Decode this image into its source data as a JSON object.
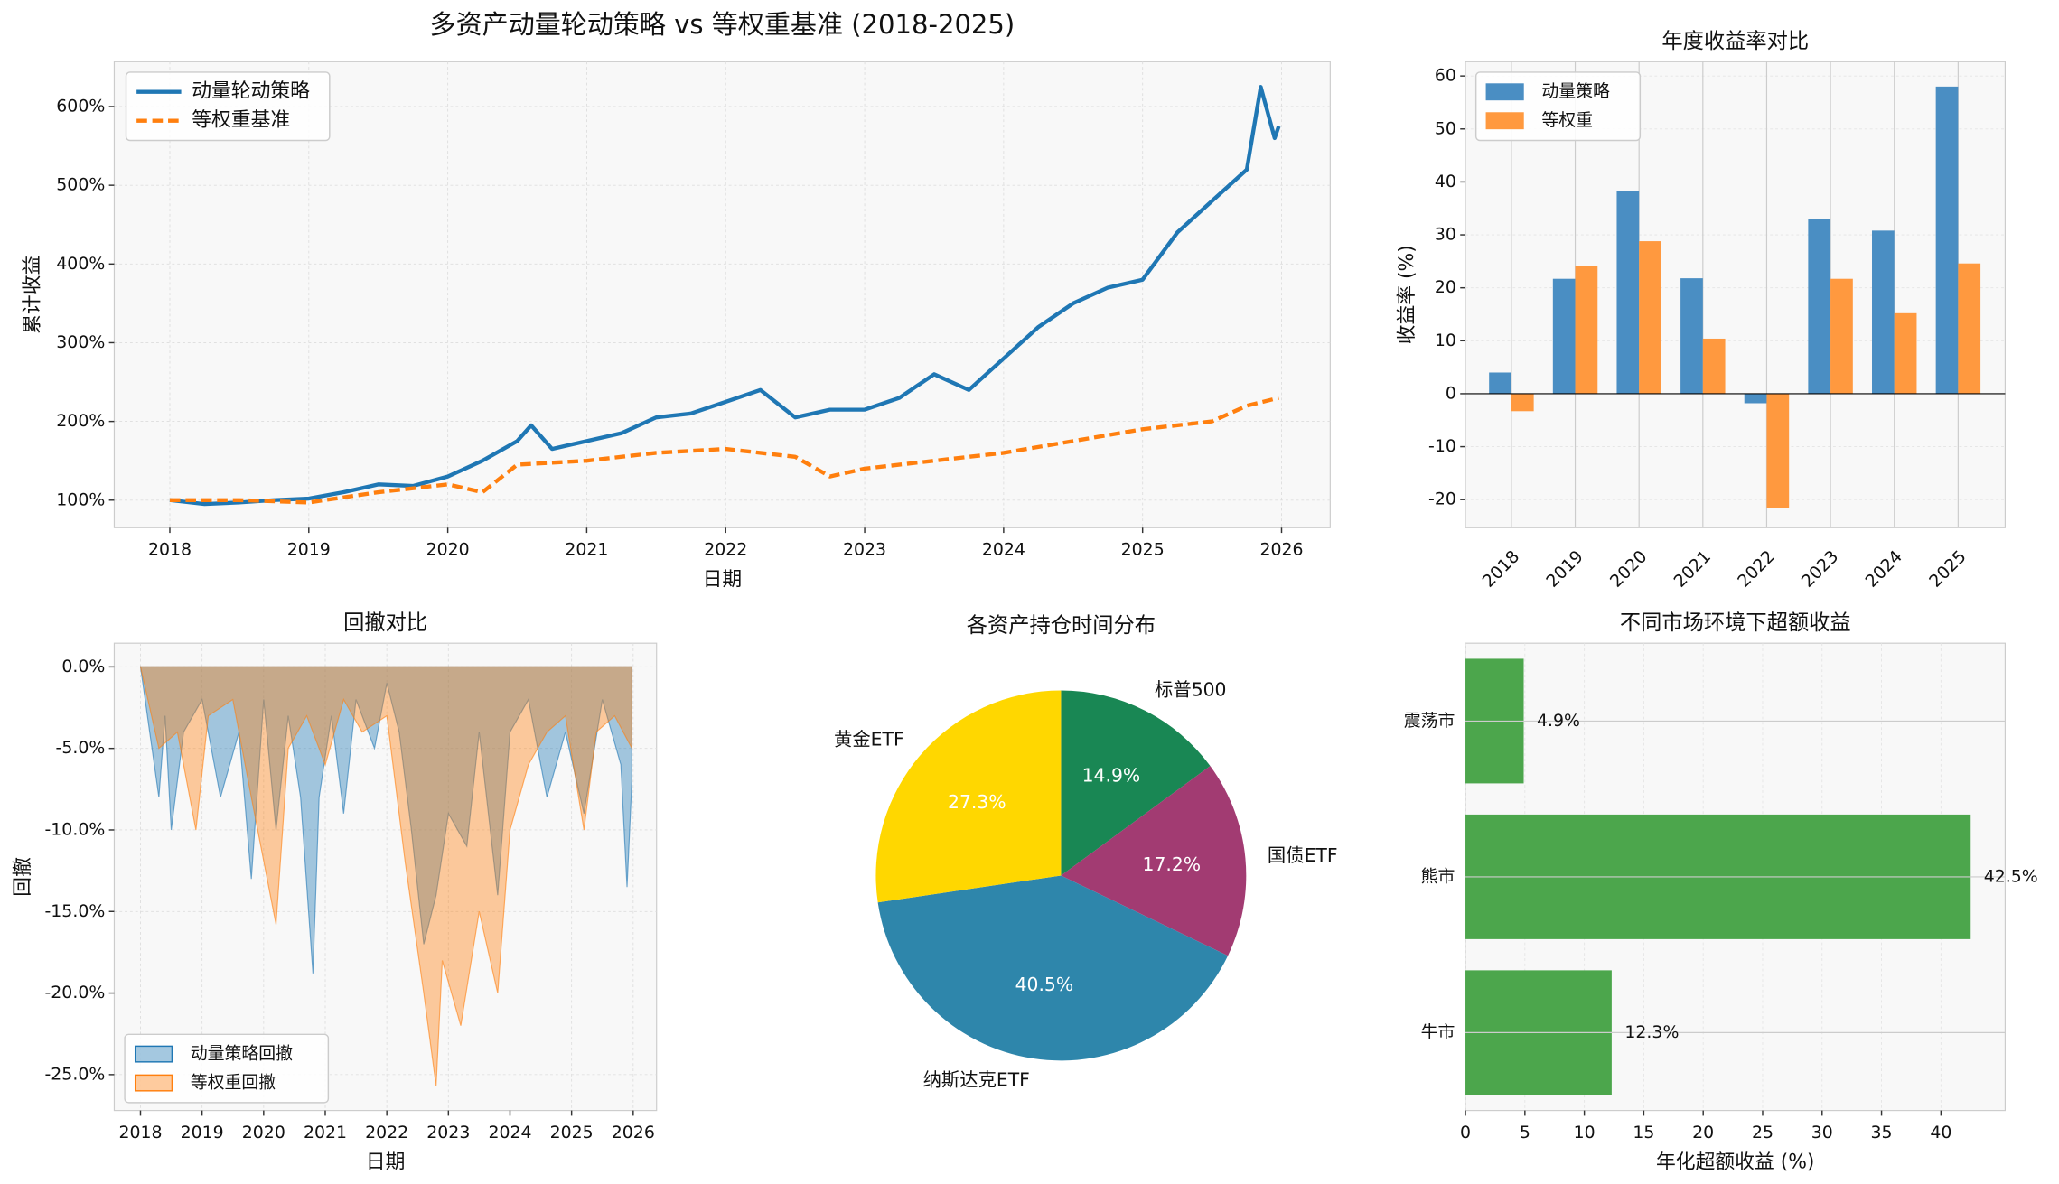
{
  "chart_data": [
    {
      "type": "line",
      "title": "多资产动量轮动策略 vs 等权重基准 (2018-2025)",
      "x_label": "日期",
      "y_label": "累计收益",
      "xlim": [
        2017.6,
        2026.35
      ],
      "xticks": [
        2018,
        2019,
        2020,
        2021,
        2022,
        2023,
        2024,
        2025,
        2026
      ],
      "ylim": [
        65,
        657
      ],
      "yticks": [
        {
          "value": 100,
          "label": "100%"
        },
        {
          "value": 200,
          "label": "200%"
        },
        {
          "value": 300,
          "label": "300%"
        },
        {
          "value": 400,
          "label": "400%"
        },
        {
          "value": 500,
          "label": "500%"
        },
        {
          "value": 600,
          "label": "600%"
        }
      ],
      "grid": true,
      "legend": "upper left",
      "series": [
        {
          "name": "动量轮动策略",
          "color": "#1f77b4",
          "dash": false,
          "x": [
            2018.0,
            2018.25,
            2018.5,
            2018.75,
            2019.0,
            2019.25,
            2019.5,
            2019.75,
            2020.0,
            2020.25,
            2020.5,
            2020.6,
            2020.75,
            2021.0,
            2021.25,
            2021.5,
            2021.75,
            2022.0,
            2022.25,
            2022.5,
            2022.75,
            2023.0,
            2023.25,
            2023.5,
            2023.75,
            2024.0,
            2024.25,
            2024.5,
            2024.75,
            2025.0,
            2025.25,
            2025.5,
            2025.75,
            2025.85,
            2025.95,
            2025.98
          ],
          "values": [
            100,
            95,
            97,
            100,
            102,
            110,
            120,
            118,
            130,
            150,
            175,
            195,
            165,
            175,
            185,
            205,
            210,
            225,
            240,
            205,
            215,
            215,
            230,
            260,
            240,
            280,
            320,
            350,
            370,
            380,
            440,
            480,
            520,
            625,
            560,
            575
          ]
        },
        {
          "name": "等权重基准",
          "color": "#ff7f0e",
          "dash": true,
          "x": [
            2018.0,
            2018.5,
            2019.0,
            2019.5,
            2020.0,
            2020.25,
            2020.5,
            2021.0,
            2021.5,
            2022.0,
            2022.5,
            2022.75,
            2023.0,
            2023.5,
            2024.0,
            2024.5,
            2025.0,
            2025.5,
            2025.75,
            2025.98
          ],
          "values": [
            100,
            100,
            97,
            110,
            120,
            110,
            145,
            150,
            160,
            165,
            155,
            130,
            140,
            150,
            160,
            175,
            190,
            200,
            220,
            230
          ]
        }
      ]
    },
    {
      "type": "bar",
      "title": "年度收益率对比",
      "y_label": "收益率 (%)",
      "categories": [
        "2018",
        "2019",
        "2020",
        "2021",
        "2022",
        "2023",
        "2024",
        "2025"
      ],
      "ylim": [
        -25.3,
        62.7
      ],
      "yticks": [
        -20,
        -10,
        0,
        10,
        20,
        30,
        40,
        50,
        60
      ],
      "hline": 0,
      "grid": true,
      "legend": "upper left",
      "series": [
        {
          "name": "动量策略",
          "color": "#4a8ec3",
          "values": [
            4,
            21.7,
            38.2,
            21.8,
            -1.8,
            33,
            30.8,
            58
          ]
        },
        {
          "name": "等权重",
          "color": "#ff993f",
          "values": [
            -3.3,
            24.2,
            28.8,
            10.4,
            -21.5,
            21.7,
            15.2,
            24.6
          ]
        }
      ]
    },
    {
      "type": "area",
      "title": "回撤对比",
      "x_label": "日期",
      "y_label": "回撤",
      "xlim": [
        2017.574,
        2026.38
      ],
      "xticks": [
        2018,
        2019,
        2020,
        2021,
        2022,
        2023,
        2024,
        2025,
        2026
      ],
      "ylim": [
        -27.2,
        1.45
      ],
      "yticks": [
        {
          "value": 0,
          "label": "0.0%"
        },
        {
          "value": -5,
          "label": "-5.0%"
        },
        {
          "value": -10,
          "label": "-10.0%"
        },
        {
          "value": -15,
          "label": "-15.0%"
        },
        {
          "value": -20,
          "label": "-20.0%"
        },
        {
          "value": -25,
          "label": "-25.0%"
        }
      ],
      "grid": true,
      "legend": "lower left",
      "series": [
        {
          "name": "动量策略回撤",
          "color": "#1f77b4",
          "x": [
            2018.0,
            2018.3,
            2018.4,
            2018.5,
            2018.7,
            2019.0,
            2019.3,
            2019.6,
            2019.8,
            2020.0,
            2020.2,
            2020.4,
            2020.6,
            2020.8,
            2020.9,
            2021.1,
            2021.3,
            2021.5,
            2021.8,
            2022.0,
            2022.2,
            2022.4,
            2022.6,
            2022.8,
            2023.0,
            2023.3,
            2023.5,
            2023.8,
            2024.0,
            2024.3,
            2024.6,
            2024.9,
            2025.2,
            2025.5,
            2025.8,
            2025.9,
            2025.98
          ],
          "values": [
            0,
            -8,
            -3,
            -10,
            -4,
            -2,
            -8,
            -4,
            -13,
            -2,
            -10,
            -3,
            -8,
            -18.8,
            -8,
            -3,
            -9,
            -2,
            -5,
            -1,
            -4,
            -10,
            -17,
            -14,
            -9,
            -11,
            -4,
            -14,
            -4,
            -2,
            -8,
            -4,
            -9,
            -2,
            -6,
            -13.5,
            -7
          ]
        },
        {
          "name": "等权重回撤",
          "color": "#ff7f0e",
          "x": [
            2018.0,
            2018.3,
            2018.6,
            2018.9,
            2019.1,
            2019.5,
            2019.8,
            2020.2,
            2020.4,
            2020.7,
            2021.0,
            2021.3,
            2021.6,
            2022.0,
            2022.3,
            2022.6,
            2022.8,
            2022.9,
            2023.2,
            2023.5,
            2023.8,
            2024.0,
            2024.3,
            2024.6,
            2024.9,
            2025.2,
            2025.4,
            2025.7,
            2025.98
          ],
          "values": [
            0,
            -5,
            -4,
            -10,
            -3,
            -2,
            -8,
            -15.8,
            -5,
            -3,
            -6,
            -2,
            -4,
            -3,
            -12,
            -20,
            -25.7,
            -18,
            -22,
            -15,
            -20,
            -10,
            -6,
            -4,
            -3,
            -10,
            -4,
            -3,
            -5
          ]
        }
      ]
    },
    {
      "type": "pie",
      "title": "各资产持仓时间分布",
      "categories": [
        "标普500",
        "国债ETF",
        "纳斯达克ETF",
        "黄金ETF"
      ],
      "values": [
        14.9,
        17.2,
        40.5,
        27.3
      ],
      "value_labels": [
        "14.9%",
        "17.2%",
        "40.5%",
        "27.3%"
      ],
      "colors": [
        "#198754",
        "#a23b72",
        "#2e86ab",
        "#ffd700"
      ]
    },
    {
      "type": "barh",
      "title": "不同市场环境下超额收益",
      "x_label": "年化超额收益 (%)",
      "categories": [
        "牛市",
        "熊市",
        "震荡市"
      ],
      "values": [
        12.3,
        42.5,
        4.9
      ],
      "value_labels": [
        "12.3%",
        "42.5%",
        "4.9%"
      ],
      "color": "#4ca64c",
      "xlim": [
        0,
        45.4
      ],
      "xticks": [
        0,
        5,
        10,
        15,
        20,
        25,
        30,
        35,
        40
      ],
      "grid": true
    }
  ]
}
